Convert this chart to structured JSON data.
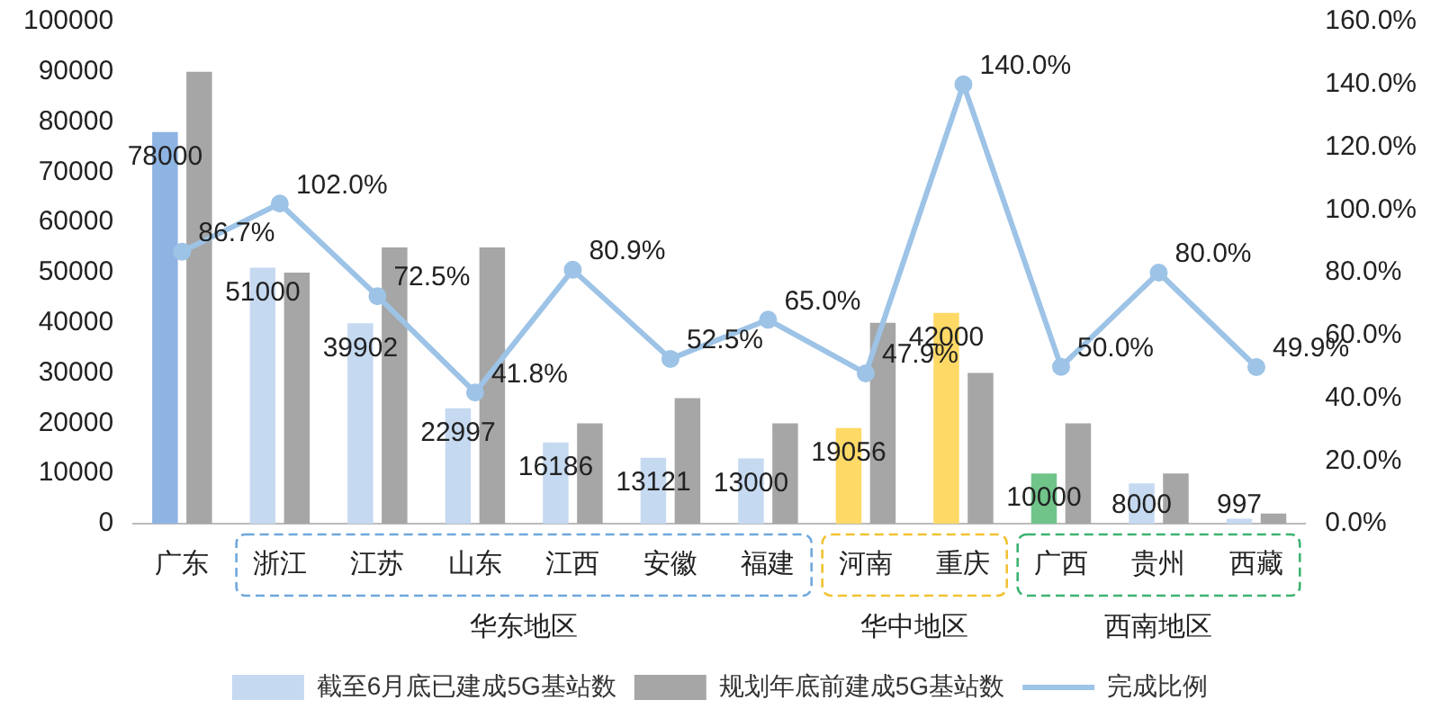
{
  "chart_data": {
    "type": "bar",
    "categories": [
      "广东",
      "浙江",
      "江苏",
      "山东",
      "江西",
      "安徽",
      "福建",
      "河南",
      "重庆",
      "广西",
      "贵州",
      "西藏"
    ],
    "series": [
      {
        "name": "截至6月底已建成5G基站数",
        "color": "#c5d9f1",
        "colors": [
          "#8eb4e3",
          "#c5d9f1",
          "#c5d9f1",
          "#c5d9f1",
          "#c5d9f1",
          "#c5d9f1",
          "#c5d9f1",
          "#ffd966",
          "#ffd966",
          "#70c48a",
          "#c5d9f1",
          "#c5d9f1"
        ],
        "values": [
          78000,
          51000,
          39902,
          22997,
          16186,
          13121,
          13000,
          19056,
          42000,
          10000,
          8000,
          997
        ],
        "value_labels": [
          "78000",
          "51000",
          "39902",
          "22997",
          "16186",
          "13121",
          "13000",
          "19056",
          "42000",
          "10000",
          "8000",
          "997"
        ]
      },
      {
        "name": "规划年底前建成5G基站数",
        "color": "#a6a6a6",
        "values": [
          90000,
          50000,
          55000,
          55000,
          20000,
          25000,
          20000,
          40000,
          30000,
          20000,
          10000,
          2000
        ]
      },
      {
        "name": "完成比例",
        "type": "line",
        "axis": "y2",
        "color": "#9dc3e6",
        "values": [
          86.7,
          102.0,
          72.5,
          41.8,
          80.9,
          52.5,
          65.0,
          47.9,
          140.0,
          50.0,
          80.0,
          49.9
        ],
        "value_labels": [
          "86.7%",
          "102.0%",
          "72.5%",
          "41.8%",
          "80.9%",
          "52.5%",
          "65.0%",
          "47.9%",
          "140.0%",
          "50.0%",
          "80.0%",
          "49.9%"
        ]
      }
    ],
    "ylim": [
      0,
      100000
    ],
    "yticks": [
      0,
      10000,
      20000,
      30000,
      40000,
      50000,
      60000,
      70000,
      80000,
      90000,
      100000
    ],
    "y2lim": [
      0,
      160
    ],
    "y2ticks": [
      {
        "value": 0,
        "label": "0.0%"
      },
      {
        "value": 20,
        "label": "20.0%"
      },
      {
        "value": 40,
        "label": "40.0%"
      },
      {
        "value": 60,
        "label": "60.0%"
      },
      {
        "value": 80,
        "label": "80.0%"
      },
      {
        "value": 100,
        "label": "100.0%"
      },
      {
        "value": 120,
        "label": "120.0%"
      },
      {
        "value": 140,
        "label": "140.0%"
      },
      {
        "value": 160,
        "label": "160.0%"
      }
    ],
    "annotations": [
      "华东地区",
      "华中地区",
      "西南地区"
    ],
    "grid": false,
    "legend": "bottom",
    "marker": "circle"
  }
}
